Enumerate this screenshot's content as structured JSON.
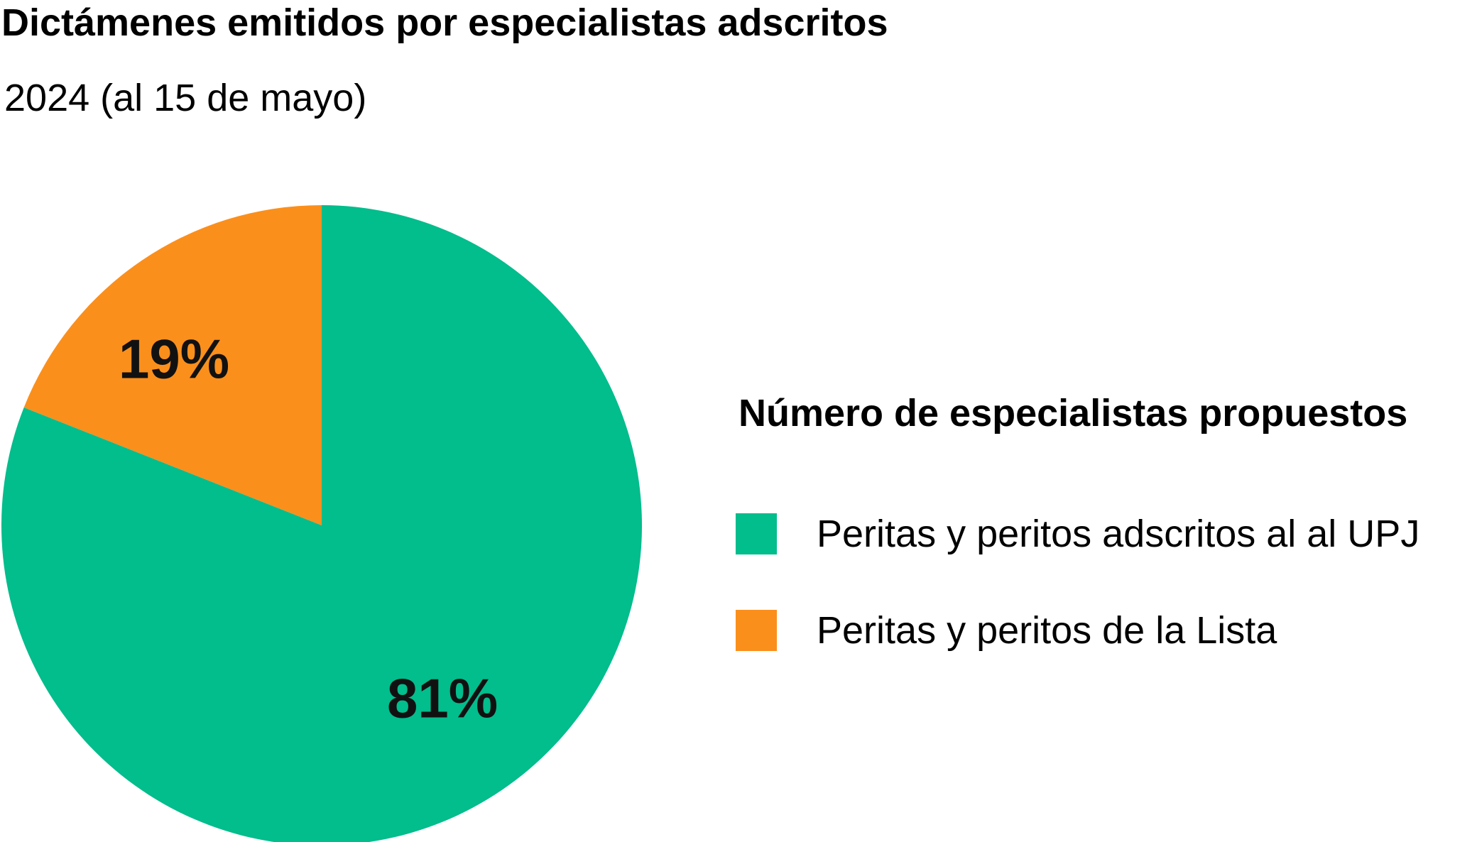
{
  "header": {
    "title": "Dictámenes emitidos por especialistas adscritos",
    "subtitle": "2024 (al 15 de mayo)"
  },
  "legend": {
    "title": "Número de especialistas propuestos",
    "items": [
      {
        "label": "Peritas y peritos adscritos al al UPJ",
        "color": "#02BD8C"
      },
      {
        "label": "Peritas y peritos de la Lista",
        "color": "#FB8F1C"
      }
    ]
  },
  "chart_data": {
    "type": "pie",
    "title": "Dictámenes emitidos por especialistas adscritos",
    "subtitle": "2024 (al 15 de mayo)",
    "legend_title": "Número de especialistas propuestos",
    "legend_position": "right",
    "slices": [
      {
        "name": "Peritas y peritos adscritos al al UPJ",
        "value": 81,
        "label": "81%",
        "color": "#02BD8C"
      },
      {
        "name": "Peritas y peritos de la Lista",
        "value": 19,
        "label": "19%",
        "color": "#FB8F1C"
      }
    ]
  }
}
